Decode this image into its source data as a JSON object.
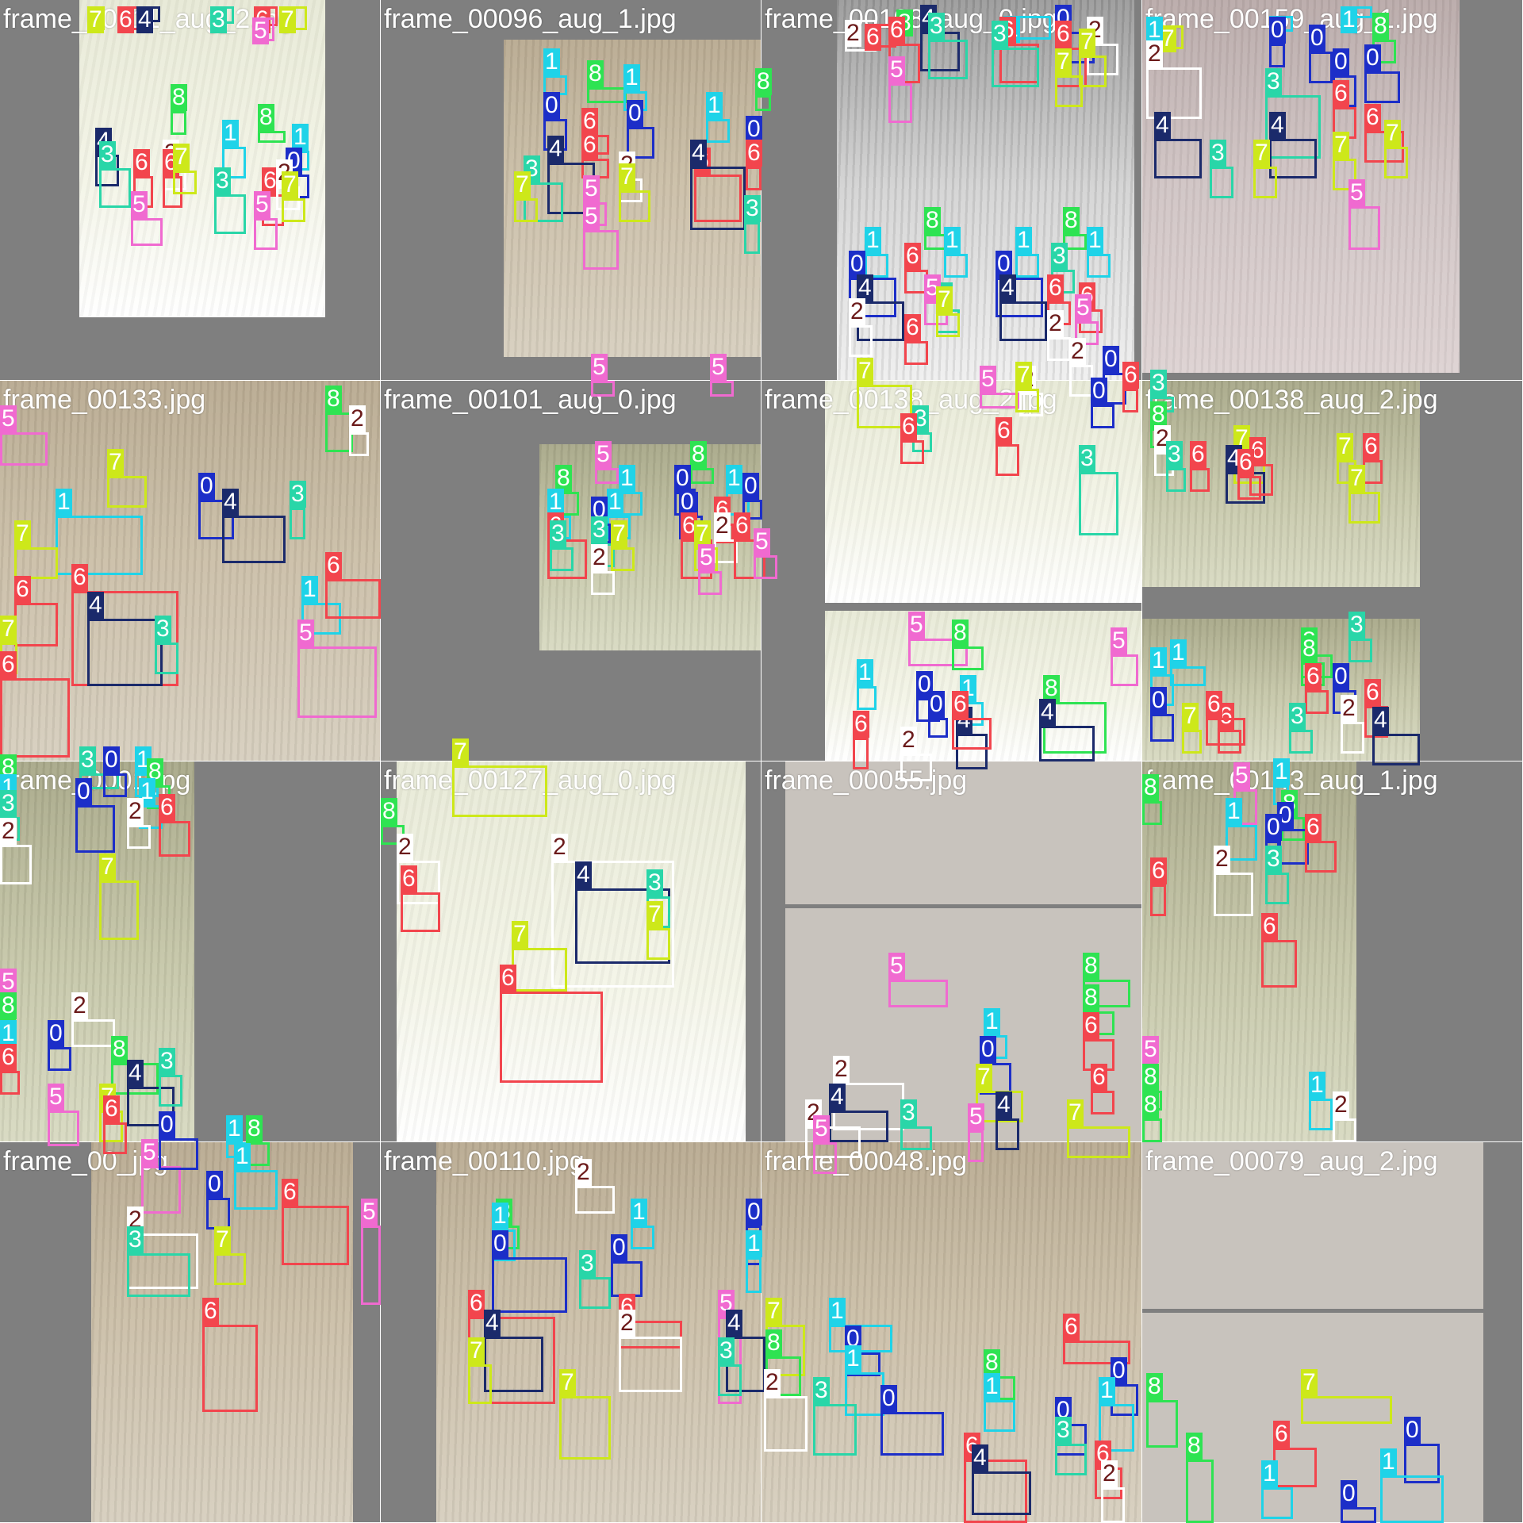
{
  "mosaic": {
    "tiles": [
      {
        "title": "frame_00011_aug_2.jpg",
        "visible_title": "frame0061_aug_2.jpg",
        "photo_tone": "white"
      },
      {
        "title": "frame_00096_aug_1.jpg",
        "photo_tone": "beige"
      },
      {
        "title": "frame_00108_aug_0.jpg",
        "photo_tone": "black-and-white"
      },
      {
        "title": "frame_00159_aug_1.jpg",
        "photo_tone": "pink"
      },
      {
        "title": "frame_00133.jpg",
        "photo_tone": "beige"
      },
      {
        "title": "frame_00101_aug_0.jpg",
        "photo_tone": "green"
      },
      {
        "title": "frame_00138_aug_2.jpg",
        "photo_tone": "white"
      },
      {
        "title": "frame_00138_aug_2.jpg",
        "photo_tone": "green"
      },
      {
        "title": "frame_0001.jpg",
        "photo_tone": "green"
      },
      {
        "title": "frame_00127_aug_0.jpg",
        "photo_tone": "white"
      },
      {
        "title": "frame_00055.jpg",
        "photo_tone": "grey"
      },
      {
        "title": "frame_00143_aug_1.jpg",
        "photo_tone": "green"
      },
      {
        "title": "frame_00_jpg",
        "photo_tone": "beige"
      },
      {
        "title": "frame_00110.jpg",
        "photo_tone": "beige"
      },
      {
        "title": "frame_00048.jpg",
        "photo_tone": "beige"
      },
      {
        "title": "frame_00079_aug_2.jpg",
        "photo_tone": "grey"
      }
    ]
  },
  "classes": {
    "0": {
      "name": "0",
      "color": "#1c2ec8"
    },
    "1": {
      "name": "1",
      "color": "#1fd3e8"
    },
    "2": {
      "name": "2",
      "color": "#ffffff",
      "label_text_color": "#6b1a1a"
    },
    "3": {
      "name": "3",
      "color": "#29d6a8"
    },
    "4": {
      "name": "4",
      "color": "#1b2a6b"
    },
    "5": {
      "name": "5",
      "color": "#f06ad0"
    },
    "6": {
      "name": "6",
      "color": "#f2454d"
    },
    "7": {
      "name": "7",
      "color": "#cde81a"
    },
    "8": {
      "name": "8",
      "color": "#2ee352"
    }
  },
  "detections": [
    {
      "tile": 0,
      "class": "7"
    },
    {
      "tile": 0,
      "class": "6"
    },
    {
      "tile": 0,
      "class": "4"
    },
    {
      "tile": 0,
      "class": "3"
    },
    {
      "tile": 0,
      "class": "6"
    },
    {
      "tile": 0,
      "class": "7"
    },
    {
      "tile": 0,
      "class": "5"
    },
    {
      "tile": 0,
      "class": "8"
    },
    {
      "tile": 0,
      "class": "8"
    },
    {
      "tile": 0,
      "class": "1"
    },
    {
      "tile": 0,
      "class": "1"
    },
    {
      "tile": 0,
      "class": "2"
    },
    {
      "tile": 0,
      "class": "0"
    },
    {
      "tile": 0,
      "class": "4"
    },
    {
      "tile": 0,
      "class": "3"
    },
    {
      "tile": 0,
      "class": "6"
    },
    {
      "tile": 0,
      "class": "6"
    },
    {
      "tile": 0,
      "class": "7"
    },
    {
      "tile": 0,
      "class": "3"
    },
    {
      "tile": 0,
      "class": "6"
    },
    {
      "tile": 0,
      "class": "2"
    },
    {
      "tile": 0,
      "class": "7"
    },
    {
      "tile": 0,
      "class": "5"
    },
    {
      "tile": 0,
      "class": "5"
    },
    {
      "tile": 1,
      "class": "1"
    },
    {
      "tile": 1,
      "class": "8"
    },
    {
      "tile": 1,
      "class": "1"
    },
    {
      "tile": 1,
      "class": "0"
    },
    {
      "tile": 1,
      "class": "0"
    },
    {
      "tile": 1,
      "class": "6"
    },
    {
      "tile": 1,
      "class": "6"
    },
    {
      "tile": 1,
      "class": "2"
    },
    {
      "tile": 1,
      "class": "4"
    },
    {
      "tile": 1,
      "class": "3"
    },
    {
      "tile": 1,
      "class": "7"
    },
    {
      "tile": 1,
      "class": "7"
    },
    {
      "tile": 1,
      "class": "5"
    },
    {
      "tile": 1,
      "class": "8"
    },
    {
      "tile": 1,
      "class": "1"
    },
    {
      "tile": 1,
      "class": "0"
    },
    {
      "tile": 1,
      "class": "6"
    },
    {
      "tile": 1,
      "class": "6"
    },
    {
      "tile": 1,
      "class": "4"
    },
    {
      "tile": 1,
      "class": "3"
    },
    {
      "tile": 1,
      "class": "5"
    },
    {
      "tile": 1,
      "class": "5"
    },
    {
      "tile": 1,
      "class": "5"
    },
    {
      "tile": 2,
      "class": "2"
    },
    {
      "tile": 2,
      "class": "6"
    },
    {
      "tile": 2,
      "class": "8"
    },
    {
      "tile": 2,
      "class": "4"
    },
    {
      "tile": 2,
      "class": "1"
    },
    {
      "tile": 2,
      "class": "0"
    },
    {
      "tile": 2,
      "class": "6"
    },
    {
      "tile": 2,
      "class": "3"
    },
    {
      "tile": 2,
      "class": "6"
    },
    {
      "tile": 2,
      "class": "3"
    },
    {
      "tile": 2,
      "class": "6"
    },
    {
      "tile": 2,
      "class": "2"
    },
    {
      "tile": 2,
      "class": "7"
    },
    {
      "tile": 2,
      "class": "5"
    },
    {
      "tile": 2,
      "class": "7"
    },
    {
      "tile": 2,
      "class": "8"
    },
    {
      "tile": 2,
      "class": "1"
    },
    {
      "tile": 2,
      "class": "1"
    },
    {
      "tile": 2,
      "class": "0"
    },
    {
      "tile": 2,
      "class": "4"
    },
    {
      "tile": 2,
      "class": "6"
    },
    {
      "tile": 2,
      "class": "3"
    },
    {
      "tile": 2,
      "class": "6"
    },
    {
      "tile": 2,
      "class": "2"
    },
    {
      "tile": 2,
      "class": "5"
    },
    {
      "tile": 2,
      "class": "7"
    },
    {
      "tile": 2,
      "class": "8"
    },
    {
      "tile": 2,
      "class": "1"
    },
    {
      "tile": 2,
      "class": "1"
    },
    {
      "tile": 2,
      "class": "0"
    },
    {
      "tile": 2,
      "class": "4"
    },
    {
      "tile": 2,
      "class": "3"
    },
    {
      "tile": 2,
      "class": "6"
    },
    {
      "tile": 2,
      "class": "6"
    },
    {
      "tile": 2,
      "class": "2"
    },
    {
      "tile": 2,
      "class": "5"
    },
    {
      "tile": 2,
      "class": "7"
    },
    {
      "tile": 3,
      "class": "1"
    },
    {
      "tile": 3,
      "class": "1"
    },
    {
      "tile": 3,
      "class": "8"
    },
    {
      "tile": 3,
      "class": "1"
    },
    {
      "tile": 3,
      "class": "0"
    },
    {
      "tile": 3,
      "class": "0"
    },
    {
      "tile": 3,
      "class": "0"
    },
    {
      "tile": 3,
      "class": "0"
    },
    {
      "tile": 3,
      "class": "6"
    },
    {
      "tile": 3,
      "class": "6"
    },
    {
      "tile": 3,
      "class": "2"
    },
    {
      "tile": 3,
      "class": "4"
    },
    {
      "tile": 3,
      "class": "3"
    },
    {
      "tile": 3,
      "class": "4"
    },
    {
      "tile": 3,
      "class": "3"
    },
    {
      "tile": 3,
      "class": "7"
    },
    {
      "tile": 3,
      "class": "7"
    },
    {
      "tile": 3,
      "class": "7"
    },
    {
      "tile": 3,
      "class": "5"
    },
    {
      "tile": 3,
      "class": "5"
    },
    {
      "tile": 4,
      "class": "8"
    },
    {
      "tile": 4,
      "class": "2"
    },
    {
      "tile": 4,
      "class": "7"
    },
    {
      "tile": 4,
      "class": "1"
    },
    {
      "tile": 4,
      "class": "0"
    },
    {
      "tile": 4,
      "class": "4"
    },
    {
      "tile": 4,
      "class": "3"
    },
    {
      "tile": 4,
      "class": "7"
    },
    {
      "tile": 4,
      "class": "6"
    },
    {
      "tile": 4,
      "class": "6"
    },
    {
      "tile": 4,
      "class": "4"
    },
    {
      "tile": 4,
      "class": "3"
    },
    {
      "tile": 4,
      "class": "7"
    },
    {
      "tile": 4,
      "class": "1"
    },
    {
      "tile": 4,
      "class": "6"
    },
    {
      "tile": 4,
      "class": "6"
    },
    {
      "tile": 4,
      "class": "5"
    },
    {
      "tile": 4,
      "class": "5"
    },
    {
      "tile": 5,
      "class": "8"
    },
    {
      "tile": 5,
      "class": "8"
    },
    {
      "tile": 5,
      "class": "1"
    },
    {
      "tile": 5,
      "class": "1"
    },
    {
      "tile": 5,
      "class": "0"
    },
    {
      "tile": 5,
      "class": "1"
    },
    {
      "tile": 5,
      "class": "0"
    },
    {
      "tile": 5,
      "class": "1"
    },
    {
      "tile": 5,
      "class": "0"
    },
    {
      "tile": 5,
      "class": "0"
    },
    {
      "tile": 5,
      "class": "6"
    },
    {
      "tile": 5,
      "class": "6"
    },
    {
      "tile": 5,
      "class": "3"
    },
    {
      "tile": 5,
      "class": "6"
    },
    {
      "tile": 5,
      "class": "2"
    },
    {
      "tile": 5,
      "class": "6"
    },
    {
      "tile": 5,
      "class": "3"
    },
    {
      "tile": 5,
      "class": "7"
    },
    {
      "tile": 5,
      "class": "7"
    },
    {
      "tile": 5,
      "class": "2"
    },
    {
      "tile": 5,
      "class": "5"
    },
    {
      "tile": 5,
      "class": "5"
    },
    {
      "tile": 5,
      "class": "7"
    },
    {
      "tile": 6,
      "class": "3"
    },
    {
      "tile": 6,
      "class": "6"
    },
    {
      "tile": 6,
      "class": "5"
    },
    {
      "tile": 6,
      "class": "2"
    },
    {
      "tile": 6,
      "class": "6"
    },
    {
      "tile": 6,
      "class": "7"
    },
    {
      "tile": 6,
      "class": "2"
    },
    {
      "tile": 6,
      "class": "0"
    },
    {
      "tile": 6,
      "class": "0"
    },
    {
      "tile": 6,
      "class": "6"
    },
    {
      "tile": 6,
      "class": "3"
    },
    {
      "tile": 6,
      "class": "5"
    },
    {
      "tile": 6,
      "class": "8"
    },
    {
      "tile": 6,
      "class": "1"
    },
    {
      "tile": 6,
      "class": "1"
    },
    {
      "tile": 6,
      "class": "0"
    },
    {
      "tile": 6,
      "class": "0"
    },
    {
      "tile": 6,
      "class": "6"
    },
    {
      "tile": 6,
      "class": "4"
    },
    {
      "tile": 6,
      "class": "6"
    },
    {
      "tile": 6,
      "class": "2"
    },
    {
      "tile": 6,
      "class": "5"
    },
    {
      "tile": 6,
      "class": "8"
    },
    {
      "tile": 6,
      "class": "4"
    },
    {
      "tile": 6,
      "class": "3"
    },
    {
      "tile": 7,
      "class": "8"
    },
    {
      "tile": 7,
      "class": "2"
    },
    {
      "tile": 7,
      "class": "7"
    },
    {
      "tile": 7,
      "class": "4"
    },
    {
      "tile": 7,
      "class": "3"
    },
    {
      "tile": 7,
      "class": "6"
    },
    {
      "tile": 7,
      "class": "6"
    },
    {
      "tile": 7,
      "class": "7"
    },
    {
      "tile": 7,
      "class": "6"
    },
    {
      "tile": 7,
      "class": "6"
    },
    {
      "tile": 7,
      "class": "7"
    },
    {
      "tile": 7,
      "class": "3"
    },
    {
      "tile": 7,
      "class": "1"
    },
    {
      "tile": 7,
      "class": "8"
    },
    {
      "tile": 7,
      "class": "8"
    },
    {
      "tile": 7,
      "class": "1"
    },
    {
      "tile": 7,
      "class": "6"
    },
    {
      "tile": 7,
      "class": "0"
    },
    {
      "tile": 7,
      "class": "6"
    },
    {
      "tile": 7,
      "class": "0"
    },
    {
      "tile": 7,
      "class": "7"
    },
    {
      "tile": 7,
      "class": "6"
    },
    {
      "tile": 7,
      "class": "3"
    },
    {
      "tile": 7,
      "class": "2"
    },
    {
      "tile": 7,
      "class": "6"
    },
    {
      "tile": 7,
      "class": "4"
    },
    {
      "tile": 7,
      "class": "3"
    },
    {
      "tile": 8,
      "class": "8"
    },
    {
      "tile": 8,
      "class": "1"
    },
    {
      "tile": 8,
      "class": "0"
    },
    {
      "tile": 8,
      "class": "1"
    },
    {
      "tile": 8,
      "class": "8"
    },
    {
      "tile": 8,
      "class": "1"
    },
    {
      "tile": 8,
      "class": "0"
    },
    {
      "tile": 8,
      "class": "3"
    },
    {
      "tile": 8,
      "class": "2"
    },
    {
      "tile": 8,
      "class": "6"
    },
    {
      "tile": 8,
      "class": "2"
    },
    {
      "tile": 8,
      "class": "7"
    },
    {
      "tile": 8,
      "class": "5"
    },
    {
      "tile": 8,
      "class": "8"
    },
    {
      "tile": 8,
      "class": "1"
    },
    {
      "tile": 8,
      "class": "0"
    },
    {
      "tile": 8,
      "class": "6"
    },
    {
      "tile": 8,
      "class": "2"
    },
    {
      "tile": 8,
      "class": "8"
    },
    {
      "tile": 8,
      "class": "4"
    },
    {
      "tile": 8,
      "class": "3"
    },
    {
      "tile": 8,
      "class": "7"
    },
    {
      "tile": 8,
      "class": "6"
    },
    {
      "tile": 8,
      "class": "5"
    },
    {
      "tile": 8,
      "class": "7"
    },
    {
      "tile": 9,
      "class": "8"
    },
    {
      "tile": 9,
      "class": "2"
    },
    {
      "tile": 9,
      "class": "6"
    },
    {
      "tile": 9,
      "class": "2"
    },
    {
      "tile": 9,
      "class": "4"
    },
    {
      "tile": 9,
      "class": "3"
    },
    {
      "tile": 9,
      "class": "7"
    },
    {
      "tile": 9,
      "class": "7"
    },
    {
      "tile": 9,
      "class": "6"
    },
    {
      "tile": 9,
      "class": "5"
    },
    {
      "tile": 10,
      "class": "8"
    },
    {
      "tile": 10,
      "class": "8"
    },
    {
      "tile": 10,
      "class": "1"
    },
    {
      "tile": 10,
      "class": "6"
    },
    {
      "tile": 10,
      "class": "0"
    },
    {
      "tile": 10,
      "class": "2"
    },
    {
      "tile": 10,
      "class": "4"
    },
    {
      "tile": 10,
      "class": "3"
    },
    {
      "tile": 10,
      "class": "6"
    },
    {
      "tile": 10,
      "class": "7"
    },
    {
      "tile": 10,
      "class": "2"
    },
    {
      "tile": 10,
      "class": "5"
    },
    {
      "tile": 10,
      "class": "4"
    },
    {
      "tile": 10,
      "class": "7"
    },
    {
      "tile": 10,
      "class": "5"
    },
    {
      "tile": 10,
      "class": "5"
    },
    {
      "tile": 11,
      "class": "1"
    },
    {
      "tile": 11,
      "class": "8"
    },
    {
      "tile": 11,
      "class": "8"
    },
    {
      "tile": 11,
      "class": "1"
    },
    {
      "tile": 11,
      "class": "0"
    },
    {
      "tile": 11,
      "class": "0"
    },
    {
      "tile": 11,
      "class": "6"
    },
    {
      "tile": 11,
      "class": "2"
    },
    {
      "tile": 11,
      "class": "3"
    },
    {
      "tile": 11,
      "class": "6"
    },
    {
      "tile": 11,
      "class": "6"
    },
    {
      "tile": 11,
      "class": "5"
    },
    {
      "tile": 11,
      "class": "8"
    },
    {
      "tile": 11,
      "class": "1"
    },
    {
      "tile": 11,
      "class": "8"
    },
    {
      "tile": 11,
      "class": "2"
    },
    {
      "tile": 11,
      "class": "5"
    },
    {
      "tile": 12,
      "class": "0"
    },
    {
      "tile": 12,
      "class": "1"
    },
    {
      "tile": 12,
      "class": "8"
    },
    {
      "tile": 12,
      "class": "1"
    },
    {
      "tile": 12,
      "class": "0"
    },
    {
      "tile": 12,
      "class": "6"
    },
    {
      "tile": 12,
      "class": "2"
    },
    {
      "tile": 12,
      "class": "3"
    },
    {
      "tile": 12,
      "class": "7"
    },
    {
      "tile": 12,
      "class": "6"
    },
    {
      "tile": 12,
      "class": "5"
    },
    {
      "tile": 12,
      "class": "2"
    },
    {
      "tile": 13,
      "class": "8"
    },
    {
      "tile": 13,
      "class": "1"
    },
    {
      "tile": 13,
      "class": "1"
    },
    {
      "tile": 13,
      "class": "0"
    },
    {
      "tile": 13,
      "class": "0"
    },
    {
      "tile": 13,
      "class": "1"
    },
    {
      "tile": 13,
      "class": "0"
    },
    {
      "tile": 13,
      "class": "6"
    },
    {
      "tile": 13,
      "class": "4"
    },
    {
      "tile": 13,
      "class": "3"
    },
    {
      "tile": 13,
      "class": "6"
    },
    {
      "tile": 13,
      "class": "2"
    },
    {
      "tile": 13,
      "class": "7"
    },
    {
      "tile": 13,
      "class": "7"
    },
    {
      "tile": 13,
      "class": "5"
    },
    {
      "tile": 13,
      "class": "4"
    },
    {
      "tile": 13,
      "class": "3"
    },
    {
      "tile": 13,
      "class": "7"
    },
    {
      "tile": 14,
      "class": "1"
    },
    {
      "tile": 14,
      "class": "8"
    },
    {
      "tile": 14,
      "class": "0"
    },
    {
      "tile": 14,
      "class": "1"
    },
    {
      "tile": 14,
      "class": "0"
    },
    {
      "tile": 14,
      "class": "2"
    },
    {
      "tile": 14,
      "class": "3"
    },
    {
      "tile": 14,
      "class": "6"
    },
    {
      "tile": 14,
      "class": "8"
    },
    {
      "tile": 14,
      "class": "1"
    },
    {
      "tile": 14,
      "class": "0"
    },
    {
      "tile": 14,
      "class": "1"
    },
    {
      "tile": 14,
      "class": "0"
    },
    {
      "tile": 14,
      "class": "6"
    },
    {
      "tile": 14,
      "class": "4"
    },
    {
      "tile": 14,
      "class": "3"
    },
    {
      "tile": 14,
      "class": "6"
    },
    {
      "tile": 14,
      "class": "2"
    },
    {
      "tile": 14,
      "class": "7"
    },
    {
      "tile": 15,
      "class": "8"
    },
    {
      "tile": 15,
      "class": "8"
    },
    {
      "tile": 15,
      "class": "6"
    },
    {
      "tile": 15,
      "class": "1"
    },
    {
      "tile": 15,
      "class": "0"
    },
    {
      "tile": 15,
      "class": "1"
    },
    {
      "tile": 15,
      "class": "0"
    },
    {
      "tile": 15,
      "class": "6"
    }
  ]
}
